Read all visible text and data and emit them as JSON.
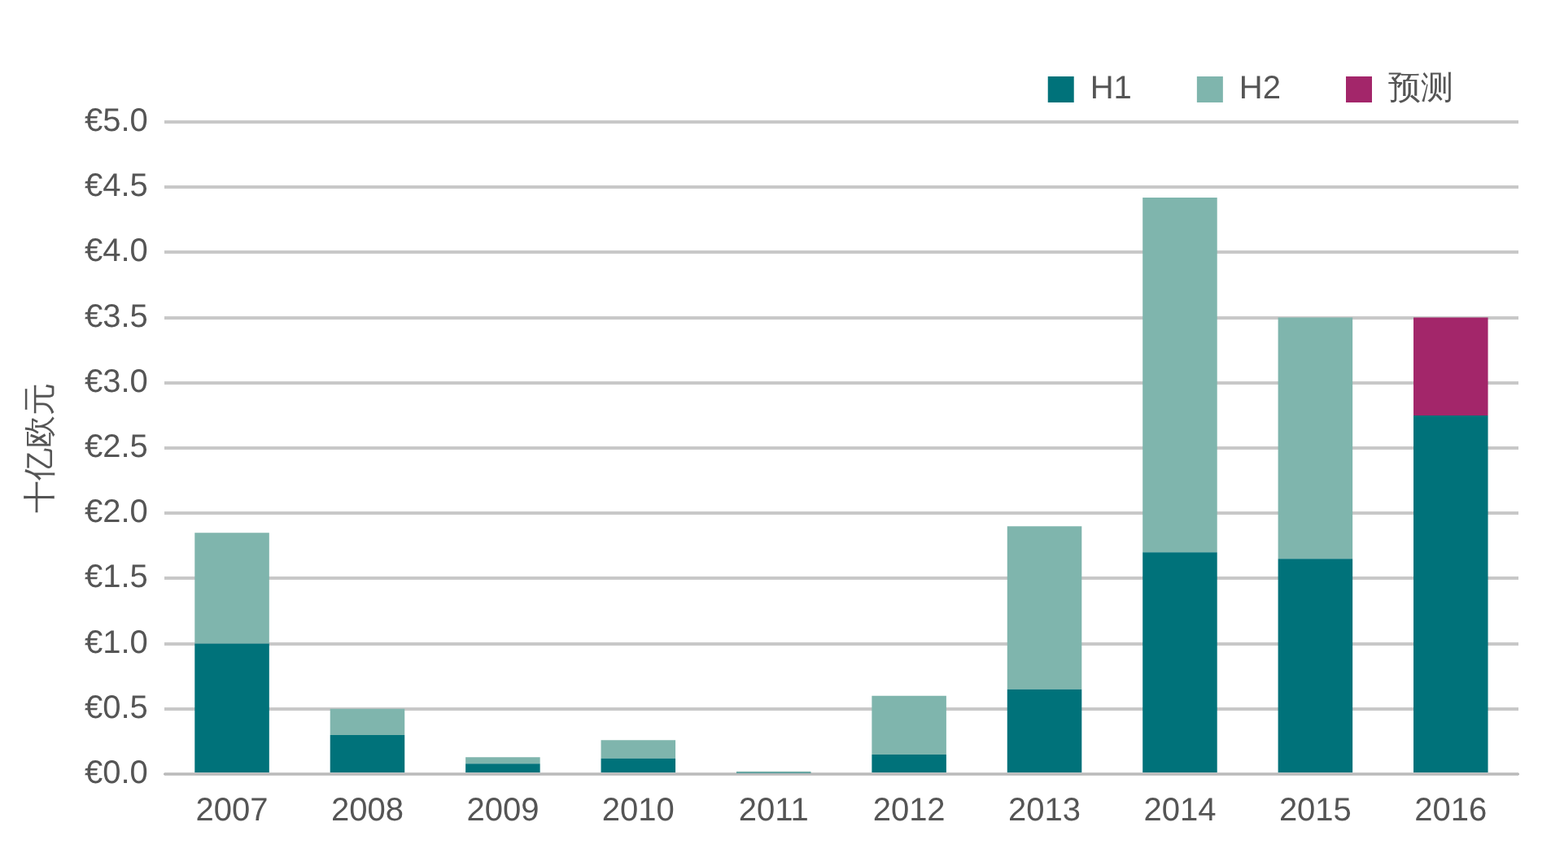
{
  "chart_data": {
    "type": "bar",
    "stacked": true,
    "ylabel": "十亿欧元",
    "categories": [
      "2007",
      "2008",
      "2009",
      "2010",
      "2011",
      "2012",
      "2013",
      "2014",
      "2015",
      "2016"
    ],
    "series": [
      {
        "name": "H1",
        "color": "#00727a",
        "values": [
          1.0,
          0.3,
          0.08,
          0.12,
          0.01,
          0.15,
          0.65,
          1.7,
          1.65,
          2.75
        ]
      },
      {
        "name": "H2",
        "color": "#7fb5ad",
        "values": [
          0.85,
          0.2,
          0.05,
          0.14,
          0.01,
          0.45,
          1.25,
          2.72,
          1.85,
          null
        ]
      },
      {
        "name": "预测",
        "color": "#a3266a",
        "values": [
          null,
          null,
          null,
          null,
          null,
          null,
          null,
          null,
          null,
          0.75
        ]
      }
    ],
    "ylim": [
      0,
      5
    ],
    "yticks": [
      {
        "value": 0,
        "label": "€0.0"
      },
      {
        "value": 0.5,
        "label": "€0.5"
      },
      {
        "value": 1,
        "label": "€1.0"
      },
      {
        "value": 1.5,
        "label": "€1.5"
      },
      {
        "value": 2,
        "label": "€2.0"
      },
      {
        "value": 2.5,
        "label": "€2.5"
      },
      {
        "value": 3,
        "label": "€3.0"
      },
      {
        "value": 3.5,
        "label": "€3.5"
      },
      {
        "value": 4,
        "label": "€4.0"
      },
      {
        "value": 4.5,
        "label": "€4.5"
      },
      {
        "value": 5,
        "label": "€5.0"
      }
    ],
    "grid": "y",
    "legend": "top right"
  }
}
